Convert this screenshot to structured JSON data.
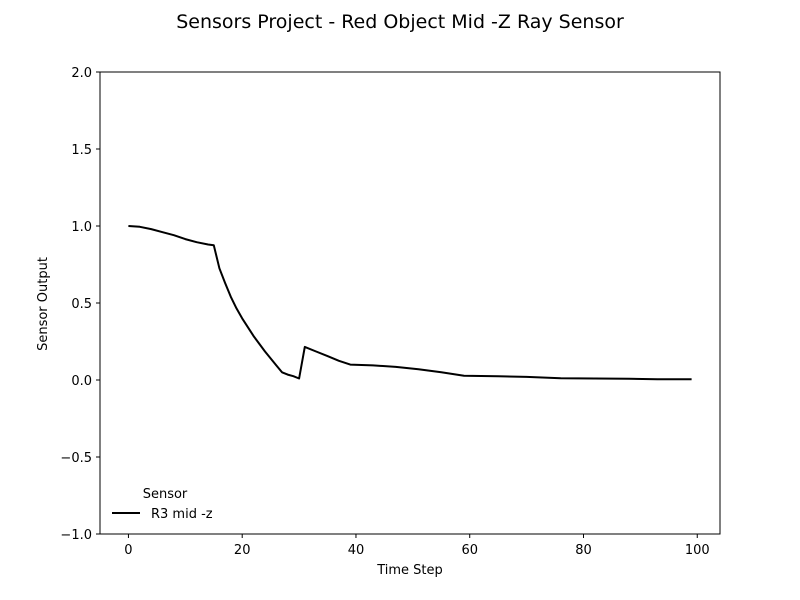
{
  "chart_data": {
    "type": "line",
    "title": "Sensors Project - Red Object Mid -Z Ray Sensor",
    "xlabel": "Time Step",
    "ylabel": "Sensor Output",
    "xlim": [
      -5,
      104
    ],
    "ylim": [
      -1.0,
      2.0
    ],
    "xticks": [
      0,
      20,
      40,
      60,
      80,
      100
    ],
    "xtick_labels": [
      "0",
      "20",
      "40",
      "60",
      "80",
      "100"
    ],
    "yticks": [
      -1.0,
      -0.5,
      0.0,
      0.5,
      1.0,
      1.5,
      2.0
    ],
    "ytick_labels": [
      "−1.0",
      "−0.5",
      "0.0",
      "0.5",
      "1.0",
      "1.5",
      "2.0"
    ],
    "grid": false,
    "legend": {
      "title": "Sensor",
      "location": "lower-left"
    },
    "series": [
      {
        "name": "R3 mid -z",
        "color": "#000000",
        "x": [
          0,
          2,
          4,
          6,
          8,
          10,
          12,
          14,
          15,
          16,
          17,
          18,
          19,
          20,
          22,
          24,
          26,
          27,
          28,
          29,
          30,
          31,
          33,
          35,
          37,
          39,
          43,
          47,
          51,
          55,
          59,
          65,
          70,
          76,
          82,
          88,
          93,
          99
        ],
        "y": [
          1.0,
          0.995,
          0.98,
          0.96,
          0.94,
          0.915,
          0.895,
          0.88,
          0.875,
          0.725,
          0.63,
          0.54,
          0.465,
          0.4,
          0.285,
          0.185,
          0.095,
          0.05,
          0.035,
          0.025,
          0.01,
          0.215,
          0.185,
          0.155,
          0.125,
          0.1,
          0.095,
          0.085,
          0.07,
          0.05,
          0.028,
          0.025,
          0.02,
          0.012,
          0.01,
          0.008,
          0.005,
          0.005
        ]
      }
    ]
  }
}
